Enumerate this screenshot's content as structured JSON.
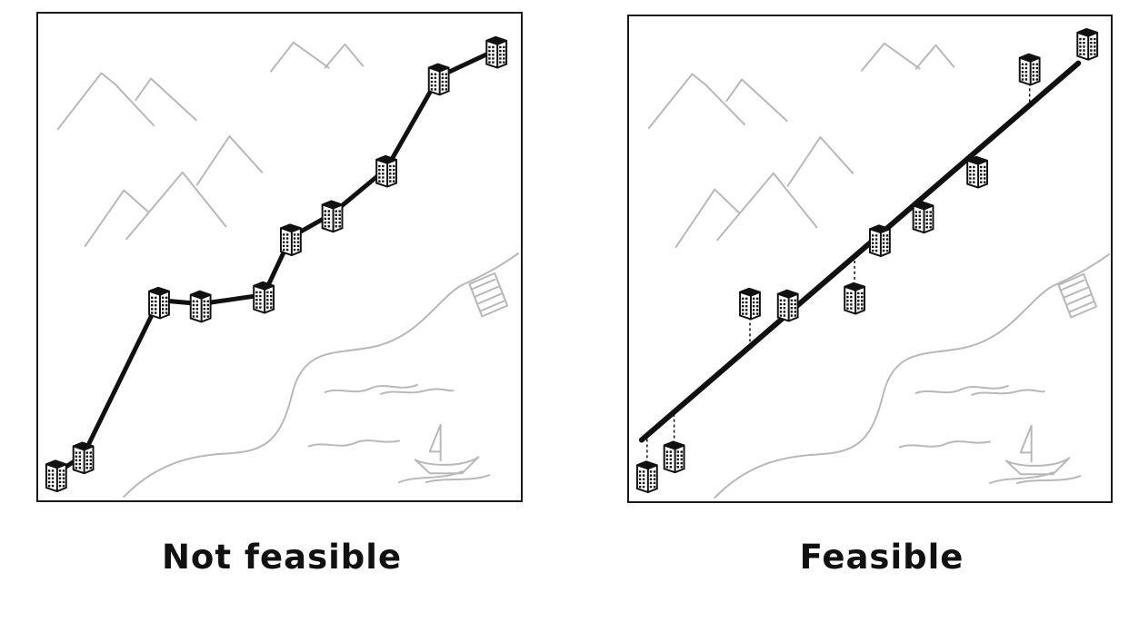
{
  "panels": [
    {
      "id": "not-feasible",
      "caption": "Not feasible",
      "route": "winding-road-through-all-buildings"
    },
    {
      "id": "feasible",
      "caption": "Feasible",
      "route": "straight-line-with-short-connectors"
    }
  ],
  "icons": [
    "building-icon",
    "mountain-icon",
    "sailboat-icon",
    "staircase-icon",
    "shoreline",
    "waves"
  ],
  "colors": {
    "ink": "#111111",
    "scenery": "#b8b8b8",
    "frame": "#1a1a1a"
  }
}
